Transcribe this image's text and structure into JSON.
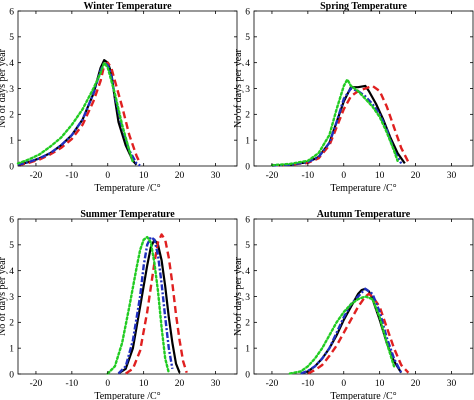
{
  "chart_data": [
    {
      "type": "line",
      "title": "Winter Temperature",
      "xlabel": "Temperature /C°",
      "ylabel": "No of days per year",
      "xlim": [
        -25,
        36
      ],
      "ylim": [
        0,
        6
      ],
      "xticks": [
        -20,
        -10,
        0,
        10,
        20,
        30
      ],
      "yticks": [
        0,
        1,
        2,
        3,
        4,
        5,
        6
      ],
      "grid": false,
      "series": [
        {
          "color": "#000000",
          "style": "solid",
          "x": [
            -25,
            -22,
            -19,
            -16,
            -13,
            -10,
            -7,
            -4,
            -3,
            -2,
            -1,
            0,
            1,
            2,
            3,
            5,
            7,
            8
          ],
          "y": [
            0.05,
            0.15,
            0.3,
            0.5,
            0.8,
            1.2,
            1.8,
            2.8,
            3.3,
            3.8,
            4.1,
            4.0,
            3.6,
            2.6,
            1.7,
            0.8,
            0.2,
            0.05
          ]
        },
        {
          "color": "#e02020",
          "style": "dashed",
          "x": [
            -25,
            -22,
            -19,
            -16,
            -13,
            -10,
            -7,
            -4,
            -2,
            -1,
            0,
            1,
            2,
            4,
            6,
            8,
            9
          ],
          "y": [
            0.03,
            0.12,
            0.25,
            0.45,
            0.7,
            1.05,
            1.6,
            2.5,
            3.3,
            3.9,
            4.0,
            3.8,
            3.3,
            2.3,
            1.2,
            0.4,
            0.1
          ]
        },
        {
          "color": "#2030c0",
          "style": "dashdot",
          "x": [
            -25,
            -22,
            -19,
            -16,
            -13,
            -10,
            -7,
            -4,
            -2,
            -1,
            0,
            1,
            2,
            4,
            6,
            8,
            9
          ],
          "y": [
            0.05,
            0.15,
            0.3,
            0.5,
            0.8,
            1.2,
            1.8,
            2.8,
            3.7,
            4.0,
            3.9,
            3.5,
            2.7,
            1.5,
            0.6,
            0.1,
            0.02
          ]
        },
        {
          "color": "#22cc22",
          "style": "dotted",
          "x": [
            -25,
            -22,
            -19,
            -16,
            -13,
            -10,
            -7,
            -4,
            -2,
            -1,
            0,
            2,
            4,
            6,
            7
          ],
          "y": [
            0.1,
            0.25,
            0.45,
            0.75,
            1.1,
            1.6,
            2.2,
            3.0,
            3.6,
            4.0,
            3.8,
            2.8,
            1.6,
            0.6,
            0.15
          ]
        }
      ]
    },
    {
      "type": "line",
      "title": "Spring Temperature",
      "xlabel": "Temperature /C°",
      "ylabel": "No of days per year",
      "xlim": [
        -25,
        36
      ],
      "ylim": [
        0,
        6
      ],
      "xticks": [
        -20,
        -10,
        0,
        10,
        20,
        30
      ],
      "yticks": [
        0,
        1,
        2,
        3,
        4,
        5,
        6
      ],
      "grid": false,
      "series": [
        {
          "color": "#000000",
          "style": "solid",
          "x": [
            -20,
            -15,
            -10,
            -7,
            -4,
            -2,
            0,
            2,
            4,
            6,
            7,
            9,
            11,
            13,
            15,
            17
          ],
          "y": [
            0.02,
            0.05,
            0.15,
            0.35,
            0.9,
            1.7,
            2.5,
            3.05,
            3.05,
            3.1,
            2.9,
            2.4,
            1.8,
            1.1,
            0.5,
            0.1
          ]
        },
        {
          "color": "#e02020",
          "style": "dashed",
          "x": [
            -20,
            -15,
            -10,
            -7,
            -4,
            -2,
            0,
            2,
            4,
            6,
            8,
            10,
            12,
            14,
            16,
            18
          ],
          "y": [
            0.02,
            0.05,
            0.12,
            0.3,
            0.8,
            1.5,
            2.2,
            2.7,
            2.9,
            3.0,
            3.1,
            2.9,
            2.3,
            1.5,
            0.7,
            0.15
          ]
        },
        {
          "color": "#2030c0",
          "style": "dashdot",
          "x": [
            -20,
            -15,
            -10,
            -7,
            -4,
            -2,
            0,
            2,
            4,
            6,
            8,
            10,
            12,
            14,
            16
          ],
          "y": [
            0.02,
            0.05,
            0.15,
            0.35,
            0.9,
            1.7,
            2.6,
            3.0,
            2.9,
            2.7,
            2.4,
            2.0,
            1.4,
            0.6,
            0.1
          ]
        },
        {
          "color": "#22cc22",
          "style": "dotted",
          "x": [
            -20,
            -15,
            -10,
            -7,
            -4,
            -2,
            0,
            1,
            2,
            4,
            6,
            8,
            10,
            12,
            14,
            15
          ],
          "y": [
            0.03,
            0.08,
            0.2,
            0.5,
            1.2,
            2.2,
            3.1,
            3.35,
            3.1,
            2.9,
            2.6,
            2.3,
            1.9,
            1.3,
            0.6,
            0.2
          ]
        }
      ]
    },
    {
      "type": "line",
      "title": "Summer Temperature",
      "xlabel": "Temperature /C°",
      "ylabel": "No of days per year",
      "xlim": [
        -25,
        36
      ],
      "ylim": [
        0,
        6
      ],
      "xticks": [
        -20,
        -10,
        0,
        10,
        20,
        30
      ],
      "yticks": [
        0,
        1,
        2,
        3,
        4,
        5,
        6
      ],
      "grid": false,
      "series": [
        {
          "color": "#000000",
          "style": "solid",
          "x": [
            3,
            5,
            7,
            9,
            11,
            12,
            13,
            14,
            15,
            16,
            17,
            18,
            19,
            20
          ],
          "y": [
            0.02,
            0.2,
            1.0,
            2.6,
            4.2,
            4.9,
            5.2,
            5.0,
            4.4,
            3.4,
            2.2,
            1.2,
            0.4,
            0.05
          ]
        },
        {
          "color": "#e02020",
          "style": "dashed",
          "x": [
            5,
            7,
            9,
            11,
            13,
            14,
            15,
            16,
            17,
            18,
            19,
            20,
            21,
            22
          ],
          "y": [
            0.02,
            0.2,
            0.9,
            2.4,
            4.3,
            5.1,
            5.4,
            5.2,
            4.5,
            3.5,
            2.3,
            1.3,
            0.5,
            0.05
          ]
        },
        {
          "color": "#2030c0",
          "style": "dashdot",
          "x": [
            3,
            5,
            7,
            9,
            10,
            11,
            12,
            13,
            14,
            15,
            16,
            17,
            18
          ],
          "y": [
            0.02,
            0.3,
            1.3,
            3.0,
            4.2,
            5.0,
            5.3,
            5.2,
            4.6,
            3.5,
            2.2,
            1.0,
            0.2
          ]
        },
        {
          "color": "#22cc22",
          "style": "dotted",
          "x": [
            0,
            2,
            4,
            6,
            8,
            9,
            10,
            11,
            12,
            13,
            14,
            15,
            16,
            17
          ],
          "y": [
            0.02,
            0.3,
            1.2,
            2.6,
            4.1,
            4.8,
            5.2,
            5.3,
            5.1,
            4.3,
            3.2,
            1.8,
            0.6,
            0.05
          ]
        }
      ]
    },
    {
      "type": "line",
      "title": "Autumn Temperature",
      "xlabel": "Temperature /C°",
      "ylabel": "No of days per year",
      "xlim": [
        -25,
        36
      ],
      "ylim": [
        0,
        6
      ],
      "xticks": [
        -20,
        -10,
        0,
        10,
        20,
        30
      ],
      "yticks": [
        0,
        1,
        2,
        3,
        4,
        5,
        6
      ],
      "grid": false,
      "series": [
        {
          "color": "#000000",
          "style": "solid",
          "x": [
            -12,
            -10,
            -8,
            -6,
            -4,
            -2,
            0,
            2,
            4,
            5,
            6,
            7,
            8,
            10,
            12,
            14,
            16
          ],
          "y": [
            0.02,
            0.1,
            0.3,
            0.6,
            1.0,
            1.5,
            2.1,
            2.6,
            3.1,
            3.25,
            3.3,
            3.2,
            2.9,
            2.1,
            1.2,
            0.5,
            0.05
          ]
        },
        {
          "color": "#e02020",
          "style": "dashed",
          "x": [
            -10,
            -8,
            -6,
            -4,
            -2,
            0,
            2,
            4,
            6,
            7,
            8,
            10,
            12,
            14,
            16,
            18
          ],
          "y": [
            0.02,
            0.15,
            0.35,
            0.7,
            1.1,
            1.6,
            2.1,
            2.6,
            3.0,
            3.1,
            3.0,
            2.6,
            1.8,
            1.0,
            0.35,
            0.05
          ]
        },
        {
          "color": "#2030c0",
          "style": "dashdot",
          "x": [
            -12,
            -10,
            -8,
            -6,
            -4,
            -2,
            0,
            2,
            4,
            6,
            8,
            10,
            12,
            14,
            16
          ],
          "y": [
            0.02,
            0.12,
            0.3,
            0.6,
            1.0,
            1.6,
            2.2,
            2.7,
            3.0,
            3.3,
            3.1,
            2.4,
            1.4,
            0.6,
            0.05
          ]
        },
        {
          "color": "#22cc22",
          "style": "dotted",
          "x": [
            -15,
            -12,
            -10,
            -8,
            -6,
            -4,
            -2,
            0,
            2,
            4,
            6,
            8,
            10,
            12,
            14
          ],
          "y": [
            0.02,
            0.1,
            0.3,
            0.6,
            1.0,
            1.5,
            2.0,
            2.4,
            2.7,
            2.9,
            3.0,
            2.9,
            2.2,
            1.2,
            0.3
          ]
        }
      ]
    }
  ]
}
